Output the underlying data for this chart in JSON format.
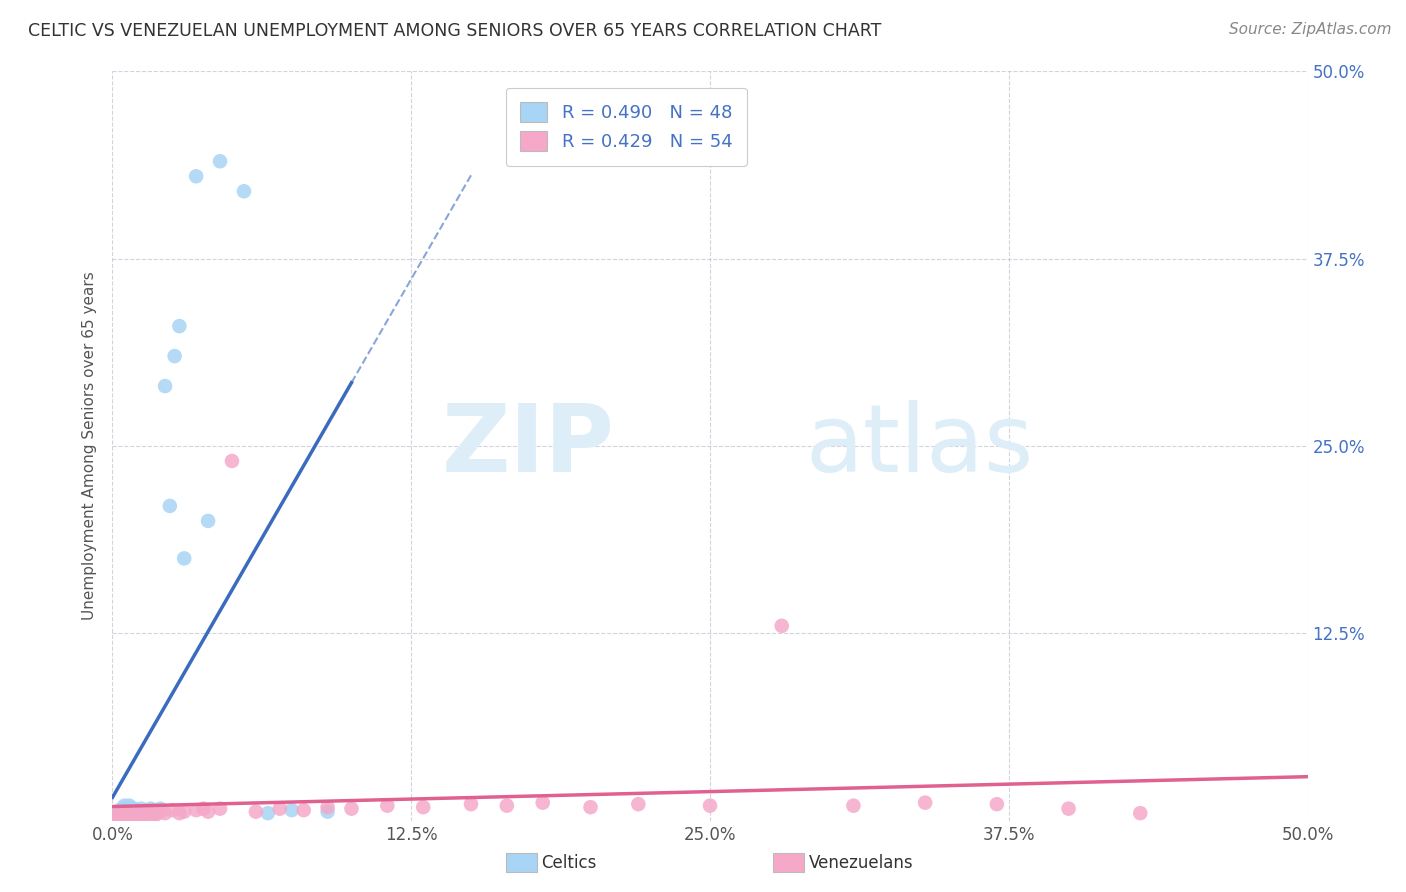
{
  "title": "CELTIC VS VENEZUELAN UNEMPLOYMENT AMONG SENIORS OVER 65 YEARS CORRELATION CHART",
  "source": "Source: ZipAtlas.com",
  "ylabel": "Unemployment Among Seniors over 65 years",
  "xlim": [
    0.0,
    0.5
  ],
  "ylim": [
    0.0,
    0.5
  ],
  "xtick_labels": [
    "0.0%",
    "12.5%",
    "25.0%",
    "37.5%",
    "50.0%"
  ],
  "xtick_positions": [
    0.0,
    0.125,
    0.25,
    0.375,
    0.5
  ],
  "ytick_positions": [
    0.125,
    0.25,
    0.375,
    0.5
  ],
  "ytick_labels_right": [
    "12.5%",
    "25.0%",
    "37.5%",
    "50.0%"
  ],
  "celtics_R": 0.49,
  "celtics_N": 48,
  "venezuelans_R": 0.429,
  "venezuelans_N": 54,
  "celtic_color": "#a8d4f5",
  "venezuelan_color": "#f5a8c8",
  "celtic_line_color": "#3a6bbf",
  "venezuelan_line_color": "#e06090",
  "legend_text_color": "#4472c4",
  "background_color": "#ffffff",
  "grid_color": "#b0b8c8",
  "watermark_zip": "ZIP",
  "watermark_atlas": "atlas",
  "watermark_color": "#ddeef8",
  "title_color": "#333333",
  "source_color": "#888888",
  "celtic_x": [
    0.001,
    0.001,
    0.002,
    0.002,
    0.002,
    0.003,
    0.003,
    0.003,
    0.004,
    0.004,
    0.004,
    0.005,
    0.005,
    0.005,
    0.006,
    0.006,
    0.006,
    0.007,
    0.007,
    0.007,
    0.008,
    0.008,
    0.009,
    0.009,
    0.01,
    0.01,
    0.011,
    0.012,
    0.013,
    0.014,
    0.015,
    0.016,
    0.017,
    0.018,
    0.019,
    0.02,
    0.022,
    0.024,
    0.026,
    0.028,
    0.03,
    0.035,
    0.04,
    0.045,
    0.055,
    0.065,
    0.075,
    0.09
  ],
  "celtic_y": [
    0.002,
    0.003,
    0.002,
    0.004,
    0.005,
    0.003,
    0.005,
    0.007,
    0.003,
    0.006,
    0.008,
    0.004,
    0.007,
    0.01,
    0.003,
    0.006,
    0.009,
    0.004,
    0.007,
    0.01,
    0.005,
    0.008,
    0.005,
    0.008,
    0.004,
    0.007,
    0.006,
    0.008,
    0.004,
    0.007,
    0.006,
    0.008,
    0.007,
    0.006,
    0.005,
    0.008,
    0.29,
    0.21,
    0.31,
    0.33,
    0.175,
    0.43,
    0.2,
    0.44,
    0.42,
    0.005,
    0.007,
    0.006
  ],
  "venezuelan_x": [
    0.001,
    0.001,
    0.002,
    0.002,
    0.003,
    0.003,
    0.004,
    0.004,
    0.005,
    0.005,
    0.006,
    0.006,
    0.007,
    0.008,
    0.009,
    0.01,
    0.01,
    0.011,
    0.012,
    0.013,
    0.014,
    0.015,
    0.016,
    0.017,
    0.018,
    0.02,
    0.022,
    0.025,
    0.028,
    0.03,
    0.035,
    0.038,
    0.04,
    0.045,
    0.05,
    0.06,
    0.07,
    0.08,
    0.09,
    0.1,
    0.115,
    0.13,
    0.15,
    0.165,
    0.18,
    0.2,
    0.22,
    0.25,
    0.28,
    0.31,
    0.34,
    0.37,
    0.4,
    0.43
  ],
  "venezuelan_y": [
    0.002,
    0.003,
    0.003,
    0.004,
    0.002,
    0.004,
    0.003,
    0.005,
    0.002,
    0.004,
    0.003,
    0.005,
    0.003,
    0.004,
    0.003,
    0.004,
    0.006,
    0.003,
    0.005,
    0.003,
    0.004,
    0.006,
    0.003,
    0.005,
    0.004,
    0.006,
    0.005,
    0.007,
    0.005,
    0.006,
    0.007,
    0.008,
    0.006,
    0.008,
    0.24,
    0.006,
    0.008,
    0.007,
    0.009,
    0.008,
    0.01,
    0.009,
    0.011,
    0.01,
    0.012,
    0.009,
    0.011,
    0.01,
    0.13,
    0.01,
    0.012,
    0.011,
    0.008,
    0.005
  ]
}
